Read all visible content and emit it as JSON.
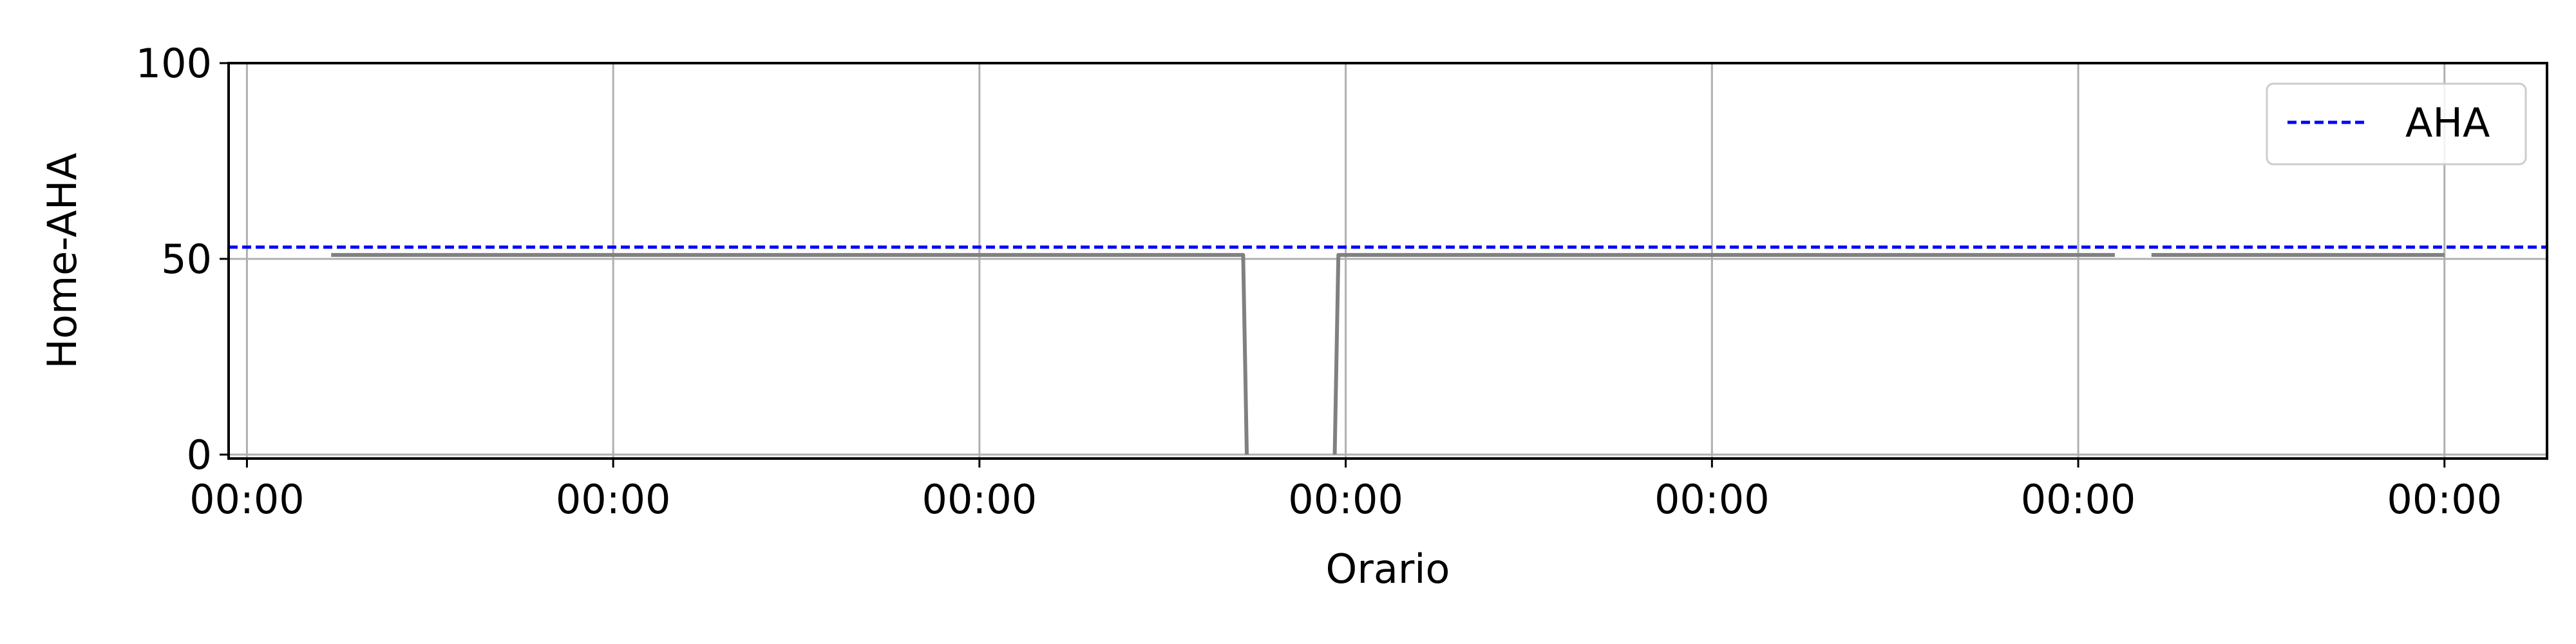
{
  "chart_data": {
    "type": "line",
    "title": "",
    "xlabel": "Orario",
    "ylabel": "Home-AHA",
    "xlim": [
      -0.05,
      6.28
    ],
    "ylim": [
      -1,
      100
    ],
    "x_ticks": [
      0,
      1,
      2,
      3,
      4,
      5,
      6
    ],
    "x_tick_labels": [
      "00:00",
      "00:00",
      "00:00",
      "00:00",
      "00:00",
      "00:00",
      "00:00"
    ],
    "y_ticks": [
      0,
      50,
      100
    ],
    "y_tick_labels": [
      "0",
      "50",
      "100"
    ],
    "grid": true,
    "legend": {
      "position": "upper right",
      "entries": [
        "AHA"
      ]
    },
    "series": [
      {
        "name": "",
        "color": "#808080",
        "style": "solid",
        "segments": [
          [
            [
              0.23,
              51
            ],
            [
              2.72,
              51
            ],
            [
              2.73,
              0
            ]
          ],
          [
            [
              2.97,
              0
            ],
            [
              2.98,
              51
            ],
            [
              5.1,
              51
            ]
          ],
          [
            [
              5.2,
              51
            ],
            [
              6.0,
              51
            ]
          ]
        ]
      },
      {
        "name": "AHA",
        "color": "#0000ff",
        "style": "dashed",
        "hline": 53
      }
    ]
  }
}
